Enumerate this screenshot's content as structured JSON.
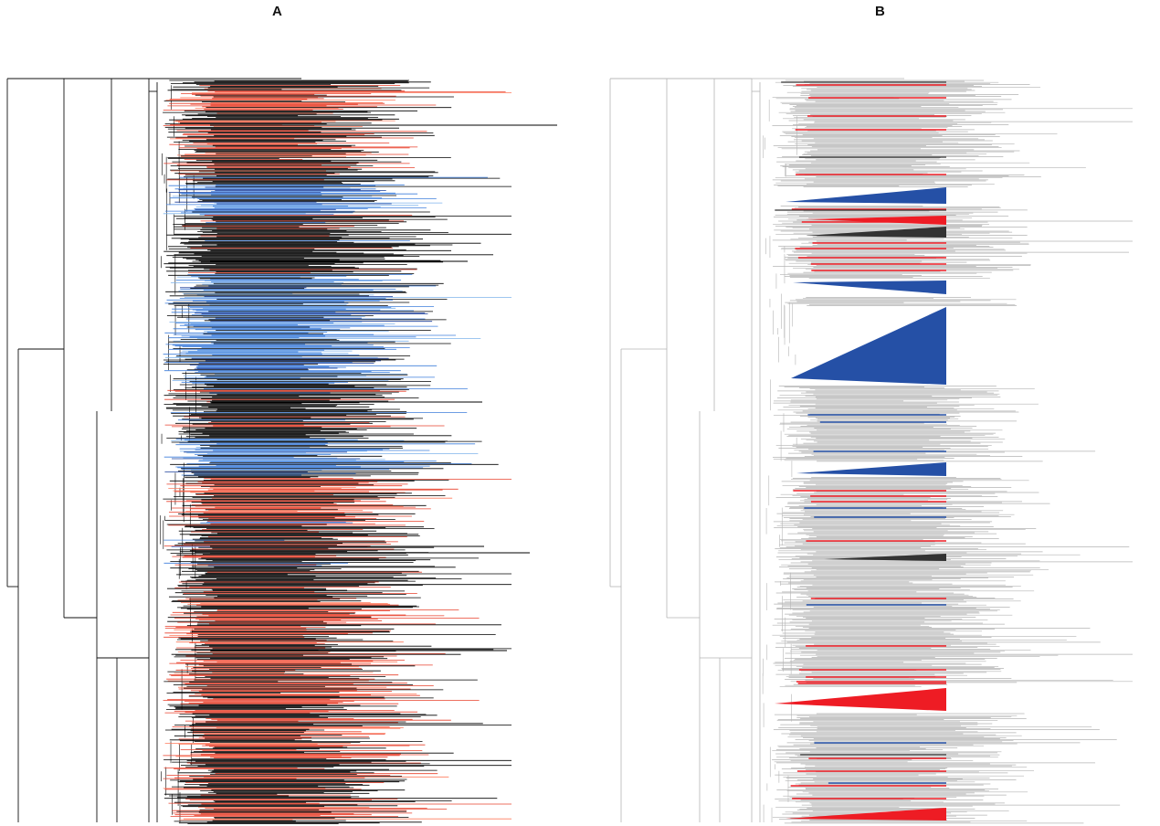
{
  "panels": [
    {
      "label": "A"
    },
    {
      "label": "B"
    }
  ],
  "colors": {
    "panel_a_tips": [
      "#000000",
      "#e8412c",
      "#ff7a5c",
      "#3f7fdc",
      "#7fb3ec",
      "#1c3f9a",
      "#b0d4f5"
    ],
    "panel_a_branch": "#111111",
    "panel_b_tree": "#b4b4b4",
    "panel_b_blue": "#2550a6",
    "panel_b_red": "#ee1c24",
    "panel_b_dark": "#333333"
  }
}
